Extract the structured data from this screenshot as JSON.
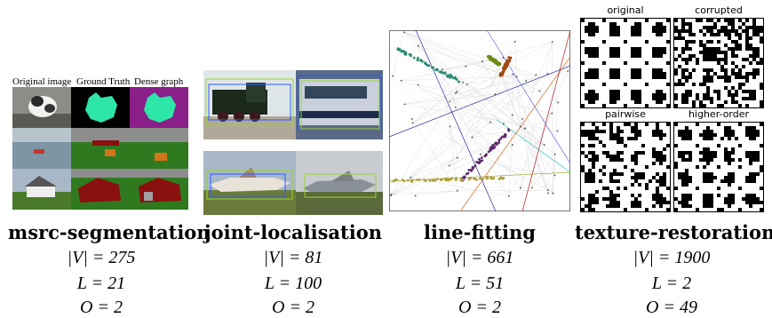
{
  "panels": [
    {
      "name": "msrc-segmentation",
      "v": "|V| = 275",
      "l": "L = 21",
      "o": "O = 2",
      "captions": [
        "Original image",
        "Ground Truth",
        "Dense graph"
      ]
    },
    {
      "name": "joint-localisation",
      "v": "|V| = 81",
      "l": "L = 100",
      "o": "O = 2"
    },
    {
      "name": "line-fitting",
      "v": "|V| = 661",
      "l": "L = 51",
      "o": "O = 2"
    },
    {
      "name": "texture-restoration",
      "v": "|V| = 1900",
      "l": "L = 2",
      "o": "O = 49",
      "captions": [
        "original",
        "corrupted",
        "pairwise",
        "higher-order"
      ]
    }
  ],
  "colors": {
    "segment_green": "#2f7a1f",
    "segment_red": "#8a1010",
    "segment_teal": "#2ee6a7",
    "segment_magenta": "#8a1f8a"
  }
}
